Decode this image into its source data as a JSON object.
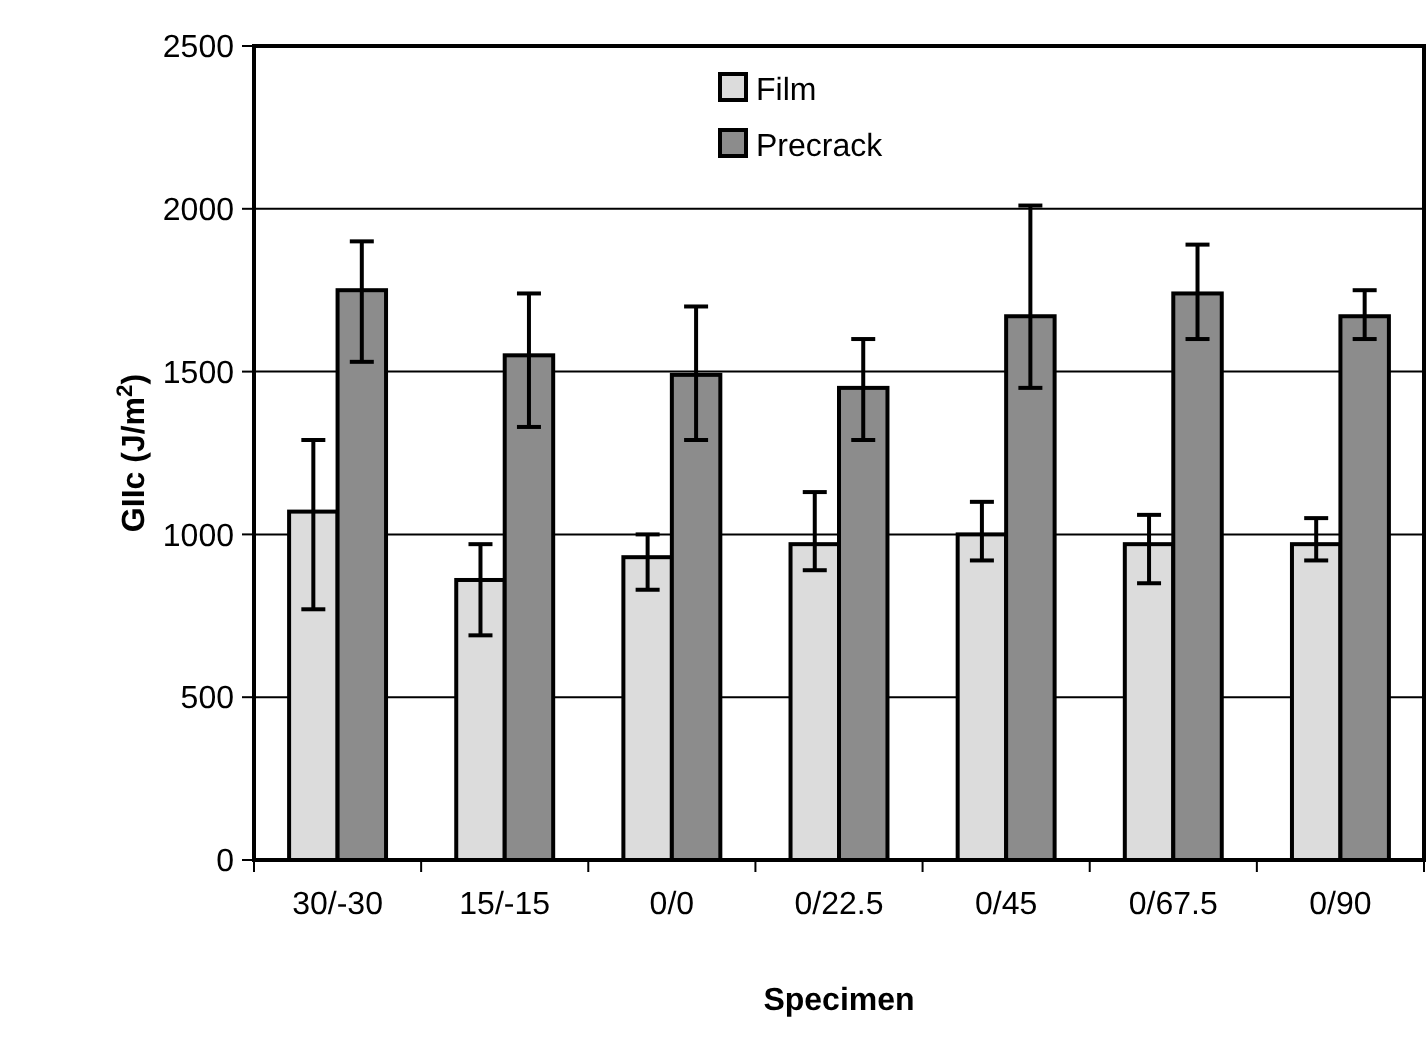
{
  "chart_data": {
    "type": "bar",
    "xlabel": "Specimen",
    "ylabel": "GIIc (J/m$^{2}$)",
    "categories": [
      "30/-30",
      "15/-15",
      "0/0",
      "0/22.5",
      "0/45",
      "0/67.5",
      "0/90"
    ],
    "series": [
      {
        "name": "Film",
        "color": "#dcdcdc",
        "values": [
          1070,
          860,
          930,
          970,
          1000,
          970,
          970
        ],
        "errors": [
          [
            770,
            1290
          ],
          [
            690,
            970
          ],
          [
            830,
            1000
          ],
          [
            890,
            1130
          ],
          [
            920,
            1100
          ],
          [
            850,
            1060
          ],
          [
            920,
            1050
          ]
        ]
      },
      {
        "name": "Precrack",
        "color": "#8c8c8c",
        "values": [
          1750,
          1550,
          1490,
          1450,
          1670,
          1740,
          1670
        ],
        "errors": [
          [
            1530,
            1900
          ],
          [
            1330,
            1740
          ],
          [
            1290,
            1700
          ],
          [
            1290,
            1600
          ],
          [
            1450,
            2010
          ],
          [
            1600,
            1890
          ],
          [
            1600,
            1750
          ]
        ]
      }
    ],
    "ylim": [
      0,
      2500
    ],
    "yticks": [
      0,
      500,
      1000,
      1500,
      2000,
      2500
    ],
    "grid": "y",
    "legend": "top"
  }
}
